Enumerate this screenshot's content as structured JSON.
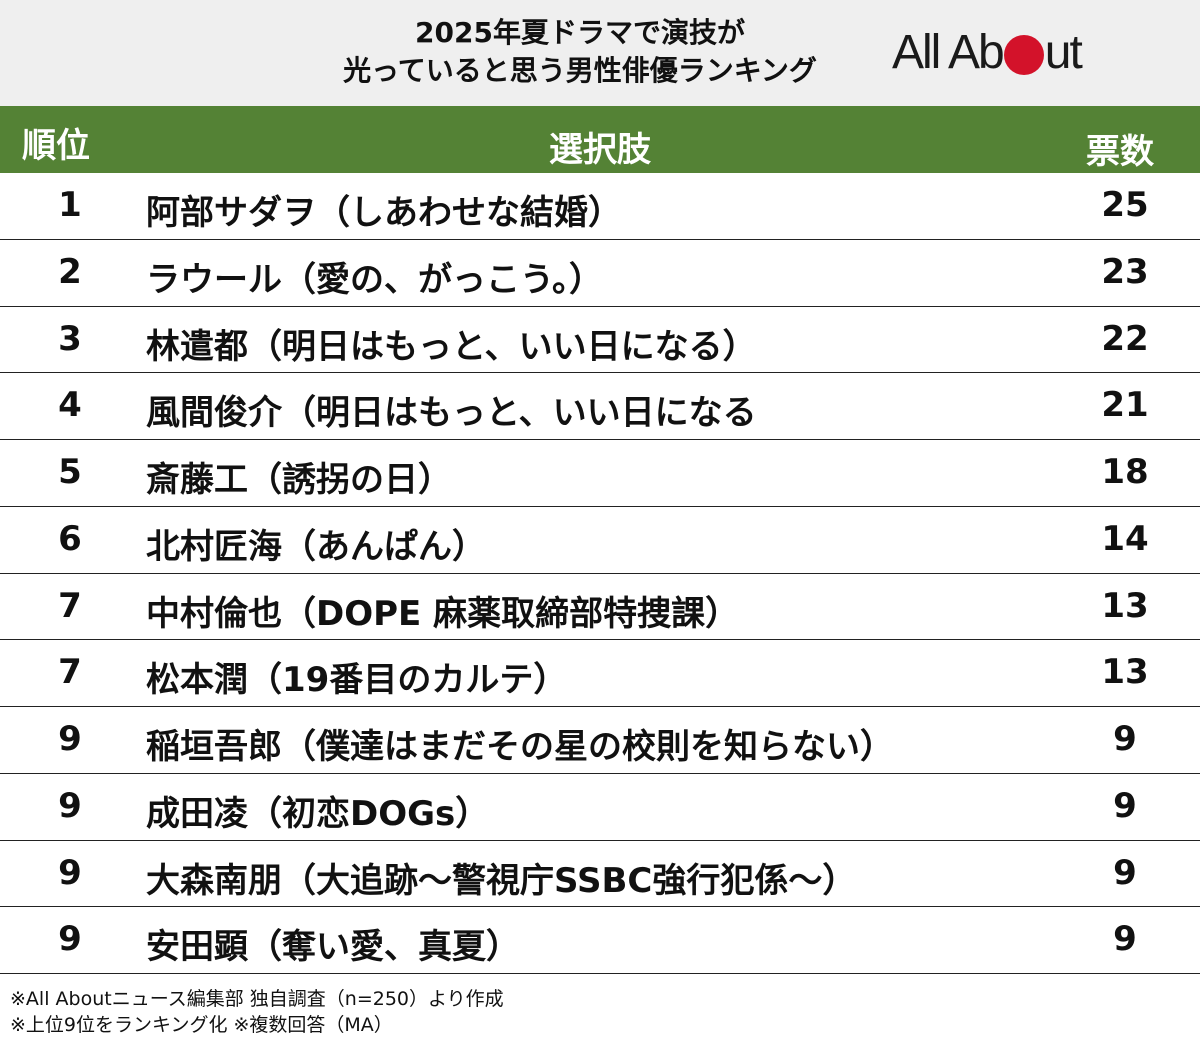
{
  "title": {
    "line1": "2025年夏ドラマで演技が",
    "line2": "光っていると思う男性俳優ランキング"
  },
  "logo": {
    "left": "All Ab",
    "right": "ut"
  },
  "colors": {
    "header_green": "#548235",
    "logo_red": "#d3122a",
    "title_band": "#efefef"
  },
  "table": {
    "headers": {
      "rank": "順位",
      "choice": "選択肢",
      "votes": "票数"
    },
    "rows": [
      {
        "rank": "1",
        "choice": "阿部サダヲ（しあわせな結婚）",
        "votes": "25"
      },
      {
        "rank": "2",
        "choice": "ラウール（愛の、がっこう。）",
        "votes": "23"
      },
      {
        "rank": "3",
        "choice": "林遣都（明日はもっと、いい日になる）",
        "votes": "22"
      },
      {
        "rank": "4",
        "choice": "風間俊介（明日はもっと、いい日になる",
        "votes": "21"
      },
      {
        "rank": "5",
        "choice": "斎藤工（誘拐の日）",
        "votes": "18"
      },
      {
        "rank": "6",
        "choice": "北村匠海（あんぱん）",
        "votes": "14"
      },
      {
        "rank": "7",
        "choice": "中村倫也（DOPE 麻薬取締部特捜課）",
        "votes": "13"
      },
      {
        "rank": "7",
        "choice": "松本潤（19番目のカルテ）",
        "votes": "13"
      },
      {
        "rank": "9",
        "choice": "稲垣吾郎（僕達はまだその星の校則を知らない）",
        "votes": "9"
      },
      {
        "rank": "9",
        "choice": "成田凌（初恋DOGs）",
        "votes": "9"
      },
      {
        "rank": "9",
        "choice": "大森南朋（大追跡～警視庁SSBC強行犯係～）",
        "votes": "9"
      },
      {
        "rank": "9",
        "choice": "安田顕（奪い愛、真夏）",
        "votes": "9"
      }
    ]
  },
  "notes": [
    "※All Aboutニュース編集部 独自調査（n=250）より作成",
    "※上位9位をランキング化 ※複数回答（MA）"
  ]
}
